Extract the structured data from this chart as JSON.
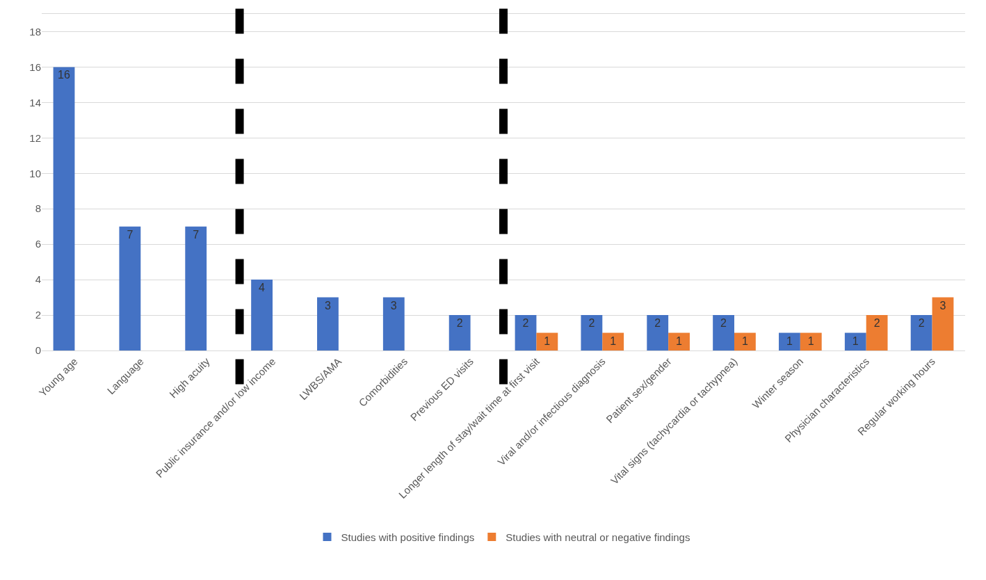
{
  "chart_data": {
    "type": "bar",
    "categories": [
      "Young age",
      "Language",
      "High acuity",
      "Public insurance and/or low income",
      "LWBS/AMA",
      "Comorbidities",
      "Previous ED visits",
      "Longer length of stay/wait time at first visit",
      "Viral and/or infectious diagnosis",
      "Patient sex/gender",
      "Vital signs (tachycardia or tachypnea)",
      "Winter season",
      "Physician characteristics",
      "Regular working hours"
    ],
    "series": [
      {
        "name": "Studies with positive findings",
        "color": "#4472c4",
        "values": [
          16,
          7,
          7,
          4,
          3,
          3,
          2,
          2,
          2,
          2,
          2,
          1,
          1,
          2
        ]
      },
      {
        "name": "Studies with neutral or negative findings",
        "color": "#ed7d31",
        "values": [
          null,
          null,
          null,
          null,
          null,
          null,
          null,
          1,
          1,
          1,
          1,
          1,
          2,
          3
        ]
      }
    ],
    "ylim": [
      0,
      19
    ],
    "yticks": [
      0,
      2,
      4,
      6,
      8,
      10,
      12,
      14,
      16,
      18
    ],
    "grid": "y",
    "legend": "bottom",
    "data_labels": true
  }
}
